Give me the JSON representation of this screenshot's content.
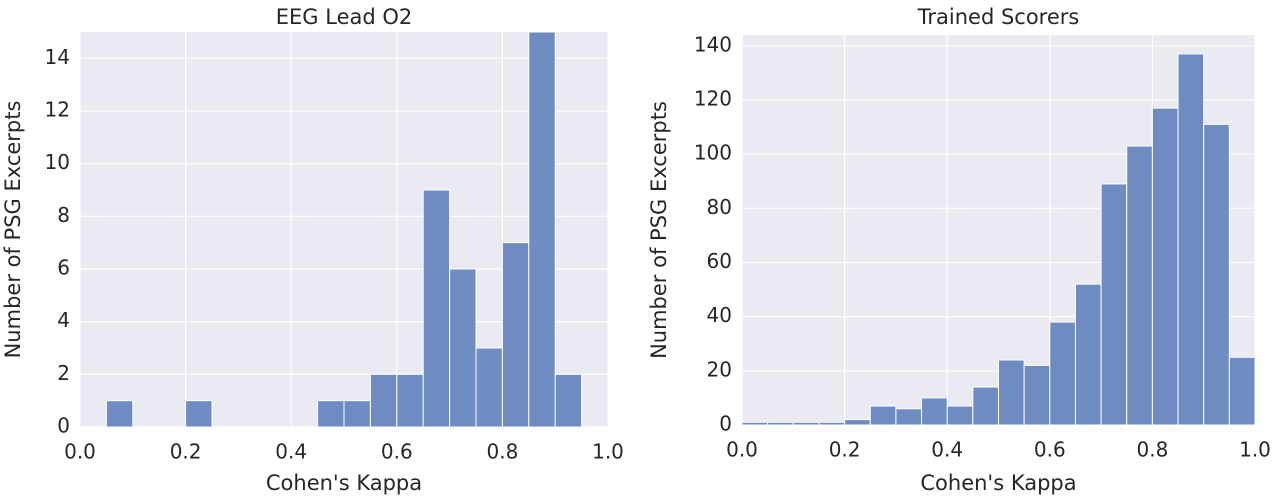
{
  "chart_data": [
    {
      "type": "histogram",
      "title": "EEG Lead O2",
      "x_label": "Cohen's Kappa",
      "y_label": "Number of PSG Excerpts",
      "color": "#6f8cc2",
      "grid": true,
      "bins": [
        0.05,
        0.1,
        0.15,
        0.2,
        0.25,
        0.3,
        0.35,
        0.4,
        0.45,
        0.5,
        0.55,
        0.6,
        0.65,
        0.7,
        0.75,
        0.8,
        0.85,
        0.9,
        0.95
      ],
      "values": [
        1,
        0,
        0,
        1,
        0,
        0,
        0,
        0,
        1,
        1,
        2,
        2,
        9,
        6,
        3,
        7,
        15,
        2
      ],
      "xlim": [
        0,
        1
      ],
      "xticks": [
        {
          "value": 0,
          "label": "0.0"
        },
        0.2,
        0.4,
        0.6,
        0.8,
        {
          "value": 1,
          "label": "1.0"
        }
      ],
      "ylim": [
        0,
        15
      ],
      "yticks": [
        0,
        2,
        4,
        6,
        8,
        10,
        12,
        14
      ]
    },
    {
      "type": "histogram",
      "title": "Trained Scorers",
      "x_label": "Cohen's Kappa",
      "y_label": "Number of PSG Excerpts",
      "color": "#6f8cc2",
      "grid": true,
      "bins": [
        0,
        0.05,
        0.1,
        0.15,
        0.2,
        0.25,
        0.3,
        0.35,
        0.4,
        0.45,
        0.5,
        0.55,
        0.6,
        0.65,
        0.7,
        0.75,
        0.8,
        0.85,
        0.9,
        0.95,
        1
      ],
      "values": [
        1,
        1,
        1,
        1,
        2,
        7,
        6,
        10,
        7,
        14,
        24,
        22,
        38,
        52,
        89,
        103,
        117,
        137,
        111,
        25
      ],
      "xlim": [
        0,
        1
      ],
      "xticks": [
        {
          "value": 0,
          "label": "0.0"
        },
        0.2,
        0.4,
        0.6,
        0.8,
        {
          "value": 1,
          "label": "1.0"
        }
      ],
      "ylim": [
        0,
        144
      ],
      "yticks": [
        0,
        20,
        40,
        60,
        80,
        100,
        120,
        140
      ]
    }
  ]
}
